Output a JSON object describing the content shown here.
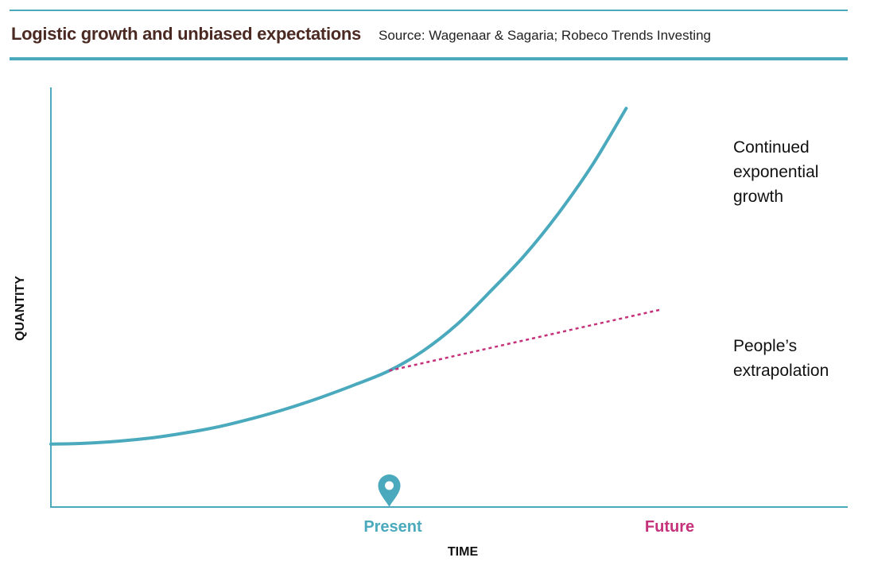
{
  "header": {
    "title": "Logistic growth and unbiased expectations",
    "source": "Source: Wagenaar & Sagaria; Robeco Trends Investing"
  },
  "colors": {
    "accent": "#4aa9bd",
    "future": "#c5317a",
    "title": "#4a2a22"
  },
  "chart_data": {
    "type": "line",
    "title": "Logistic growth and unbiased expectations",
    "xlabel": "TIME",
    "ylabel": "QUANTITY",
    "x_ticks": [
      {
        "label": "Present",
        "x": 0.5
      },
      {
        "label": "Future",
        "x": 0.9
      }
    ],
    "marker": {
      "icon": "map-pin-icon",
      "at": "Present"
    },
    "xlim": [
      0,
      1
    ],
    "ylim": [
      0,
      1
    ],
    "grid": false,
    "series": [
      {
        "name": "Continued exponential growth",
        "style": "solid",
        "color": "#4aa9bd",
        "x": [
          0.0,
          0.05,
          0.1,
          0.15,
          0.2,
          0.25,
          0.3,
          0.35,
          0.4,
          0.45,
          0.5,
          0.55,
          0.6,
          0.65,
          0.7,
          0.75,
          0.8,
          0.85
        ],
        "y": [
          0.15,
          0.152,
          0.157,
          0.165,
          0.177,
          0.192,
          0.212,
          0.235,
          0.262,
          0.292,
          0.325,
          0.372,
          0.435,
          0.515,
          0.6,
          0.7,
          0.815,
          0.95
        ]
      },
      {
        "name": "People’s extrapolation",
        "style": "dotted",
        "color": "#c5317a",
        "x": [
          0.5,
          0.9
        ],
        "y": [
          0.325,
          0.47
        ]
      }
    ],
    "annotations": [
      {
        "text": "Continued exponential growth",
        "series": 0
      },
      {
        "text": "People’s extrapolation",
        "series": 1
      }
    ]
  }
}
